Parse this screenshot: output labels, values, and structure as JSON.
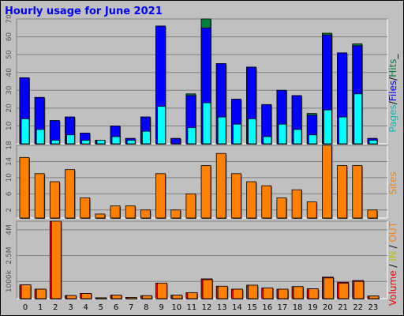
{
  "title": "Hourly usage for June 2021",
  "hours": [
    "0",
    "1",
    "2",
    "3",
    "4",
    "5",
    "6",
    "7",
    "8",
    "9",
    "10",
    "11",
    "12",
    "13",
    "14",
    "15",
    "16",
    "17",
    "18",
    "19",
    "20",
    "21",
    "22",
    "23"
  ],
  "colors": {
    "hits": "#008040",
    "files": "#0000ff",
    "pages": "#00ffff",
    "sites": "#ff8000",
    "volume": "#ff0000",
    "in": "#c0c000",
    "out": "#ff8000",
    "panel": "#c0c0c0",
    "outline": "#000000"
  },
  "side_labels": {
    "top": [
      {
        "text": "Pages",
        "color": "#00c0c0"
      },
      {
        "text": "/",
        "color": "#000000"
      },
      {
        "text": "Files",
        "color": "#0000ff"
      },
      {
        "text": "/",
        "color": "#000000"
      },
      {
        "text": "Hits",
        "color": "#008040"
      },
      {
        "text": "_",
        "color": "#000000"
      }
    ],
    "middle": [
      {
        "text": "Sites",
        "color": "#ff8000"
      }
    ],
    "bottom": [
      {
        "text": "Volume",
        "color": "#ff0000"
      },
      {
        "text": " / ",
        "color": "#000000"
      },
      {
        "text": "IN",
        "color": "#c0c000"
      },
      {
        "text": " / ",
        "color": "#000000"
      },
      {
        "text": "OUT",
        "color": "#ff8000"
      }
    ]
  },
  "chart_data": [
    {
      "type": "bar",
      "ylim": [
        0,
        70
      ],
      "yticks": [
        10,
        20,
        30,
        40,
        50,
        60,
        70
      ],
      "ytick_labels": [
        "10",
        "20",
        "30",
        "40",
        "50",
        "60",
        "70"
      ],
      "categories": [
        "0",
        "1",
        "2",
        "3",
        "4",
        "5",
        "6",
        "7",
        "8",
        "9",
        "10",
        "11",
        "12",
        "13",
        "14",
        "15",
        "16",
        "17",
        "18",
        "19",
        "20",
        "21",
        "22",
        "23"
      ],
      "series": [
        {
          "name": "Hits",
          "values": [
            37,
            26,
            13,
            15,
            6,
            2,
            10,
            3,
            15,
            66,
            3,
            28,
            70,
            45,
            25,
            43,
            22,
            30,
            27,
            17,
            62,
            51,
            56,
            3
          ]
        },
        {
          "name": "Files",
          "values": [
            37,
            26,
            13,
            15,
            6,
            2,
            10,
            3,
            15,
            66,
            3,
            27,
            65,
            45,
            25,
            43,
            22,
            30,
            27,
            16,
            61,
            51,
            55,
            3
          ]
        },
        {
          "name": "Pages",
          "values": [
            14,
            8,
            2,
            5,
            2,
            2,
            4,
            2,
            7,
            21,
            0,
            9,
            23,
            15,
            11,
            14,
            4,
            11,
            8,
            5,
            19,
            15,
            28,
            2
          ]
        }
      ]
    },
    {
      "type": "bar",
      "ylim": [
        0,
        18
      ],
      "yticks": [
        2,
        6,
        10,
        14,
        18
      ],
      "ytick_labels": [
        "2",
        "6",
        "10",
        "14",
        "18"
      ],
      "categories": [
        "0",
        "1",
        "2",
        "3",
        "4",
        "5",
        "6",
        "7",
        "8",
        "9",
        "10",
        "11",
        "12",
        "13",
        "14",
        "15",
        "16",
        "17",
        "18",
        "19",
        "20",
        "21",
        "22",
        "23"
      ],
      "series": [
        {
          "name": "Sites",
          "values": [
            15,
            11,
            9,
            12,
            5,
            1,
            3,
            3,
            2,
            11,
            2,
            6,
            13,
            16,
            11,
            9,
            8,
            5,
            7,
            4,
            18,
            13,
            13,
            2
          ]
        }
      ]
    },
    {
      "type": "bar",
      "ylim": [
        0,
        4500
      ],
      "ylabel_units": "KB",
      "yticks": [
        1000,
        2500,
        4000
      ],
      "ytick_labels": [
        "1000k",
        "2.5M",
        "4M"
      ],
      "categories": [
        "0",
        "1",
        "2",
        "3",
        "4",
        "5",
        "6",
        "7",
        "8",
        "9",
        "10",
        "11",
        "12",
        "13",
        "14",
        "15",
        "16",
        "17",
        "18",
        "19",
        "20",
        "21",
        "22",
        "23"
      ],
      "series": [
        {
          "name": "Volume",
          "values": [
            800,
            550,
            4500,
            180,
            300,
            50,
            200,
            70,
            170,
            900,
            200,
            350,
            1150,
            720,
            550,
            780,
            620,
            550,
            700,
            570,
            1250,
            950,
            1050,
            150
          ]
        },
        {
          "name": "OUT",
          "values": [
            800,
            550,
            4500,
            180,
            300,
            50,
            200,
            70,
            170,
            900,
            200,
            350,
            1100,
            720,
            550,
            780,
            620,
            550,
            700,
            570,
            1200,
            900,
            1000,
            150
          ]
        }
      ]
    }
  ]
}
